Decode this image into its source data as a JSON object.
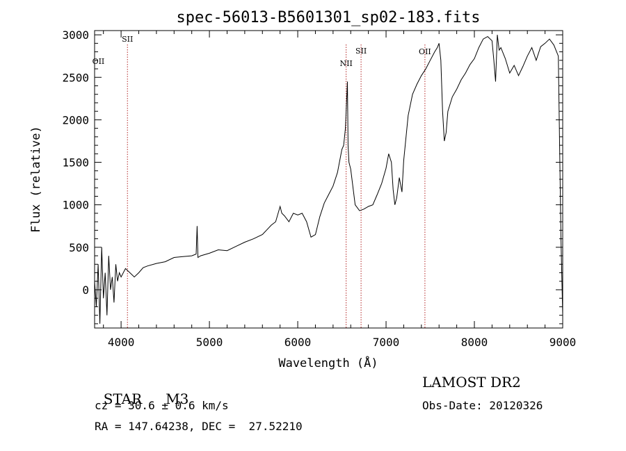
{
  "chart_data": {
    "type": "line",
    "title": "spec-56013-B5601301_sp02-183.fits",
    "xlabel": "Wavelength (Å)",
    "ylabel": "Flux (relative)",
    "xlim": [
      3700,
      9000
    ],
    "ylim": [
      -450,
      3050
    ],
    "x_ticks": [
      4000,
      5000,
      6000,
      7000,
      8000,
      9000
    ],
    "y_ticks": [
      0,
      500,
      1000,
      1500,
      2000,
      2500,
      3000
    ],
    "grid": false,
    "series": [
      {
        "x": [
          3700,
          3720,
          3740,
          3760,
          3780,
          3800,
          3820,
          3840,
          3860,
          3880,
          3900,
          3920,
          3940,
          3960,
          3980,
          4000,
          4050,
          4100,
          4150,
          4200,
          4250,
          4300,
          4400,
          4500,
          4600,
          4700,
          4800,
          4850,
          4861,
          4870,
          4900,
          5000,
          5100,
          5200,
          5300,
          5400,
          5500,
          5600,
          5700,
          5750,
          5800,
          5820,
          5850,
          5900,
          5950,
          6000,
          6050,
          6100,
          6150,
          6200,
          6250,
          6300,
          6350,
          6400,
          6450,
          6500,
          6520,
          6540,
          6563,
          6570,
          6580,
          6600,
          6650,
          6700,
          6750,
          6800,
          6850,
          6900,
          6950,
          7000,
          7030,
          7060,
          7080,
          7100,
          7120,
          7150,
          7180,
          7200,
          7250,
          7300,
          7350,
          7400,
          7450,
          7500,
          7550,
          7580,
          7600,
          7620,
          7640,
          7660,
          7680,
          7700,
          7750,
          7800,
          7850,
          7900,
          7950,
          8000,
          8050,
          8100,
          8150,
          8200,
          8220,
          8240,
          8260,
          8280,
          8300,
          8350,
          8400,
          8450,
          8500,
          8550,
          8600,
          8650,
          8700,
          8750,
          8800,
          8850,
          8900,
          8950,
          8980,
          9000
        ],
        "y": [
          100,
          -200,
          300,
          -400,
          500,
          -100,
          200,
          -300,
          400,
          0,
          150,
          -150,
          300,
          100,
          200,
          150,
          250,
          200,
          150,
          200,
          260,
          280,
          310,
          330,
          380,
          390,
          400,
          420,
          750,
          380,
          400,
          430,
          470,
          460,
          510,
          560,
          600,
          650,
          760,
          800,
          980,
          900,
          870,
          800,
          900,
          880,
          900,
          800,
          620,
          650,
          860,
          1020,
          1120,
          1220,
          1380,
          1650,
          1700,
          1900,
          2450,
          1700,
          1500,
          1420,
          1000,
          930,
          950,
          980,
          1000,
          1120,
          1250,
          1430,
          1600,
          1500,
          1180,
          1000,
          1080,
          1320,
          1150,
          1520,
          2050,
          2300,
          2420,
          2520,
          2600,
          2700,
          2800,
          2850,
          2900,
          2700,
          2100,
          1750,
          1850,
          2100,
          2270,
          2360,
          2470,
          2550,
          2650,
          2720,
          2850,
          2950,
          2980,
          2930,
          2700,
          2450,
          3000,
          2820,
          2850,
          2720,
          2550,
          2640,
          2520,
          2630,
          2750,
          2850,
          2700,
          2860,
          2900,
          2950,
          2880,
          2750,
          600,
          -300
        ]
      }
    ],
    "annotations": [
      {
        "label": "OII",
        "x": 3727,
        "line": false
      },
      {
        "label": "SII",
        "x": 4072,
        "line": true
      },
      {
        "label": "NII",
        "x": 6548,
        "line": true
      },
      {
        "label": "SII",
        "x": 6717,
        "line": true
      },
      {
        "label": "OII",
        "x": 7440,
        "line": true
      }
    ]
  },
  "info": {
    "class": "STAR",
    "subclass": "M3",
    "survey": "LAMOST DR2",
    "cz": "cz = 30.6 ± 0.6 km/s",
    "obs_date": "Obs-Date: 20120326",
    "coords": "RA = 147.64238, DEC =  27.52210"
  }
}
